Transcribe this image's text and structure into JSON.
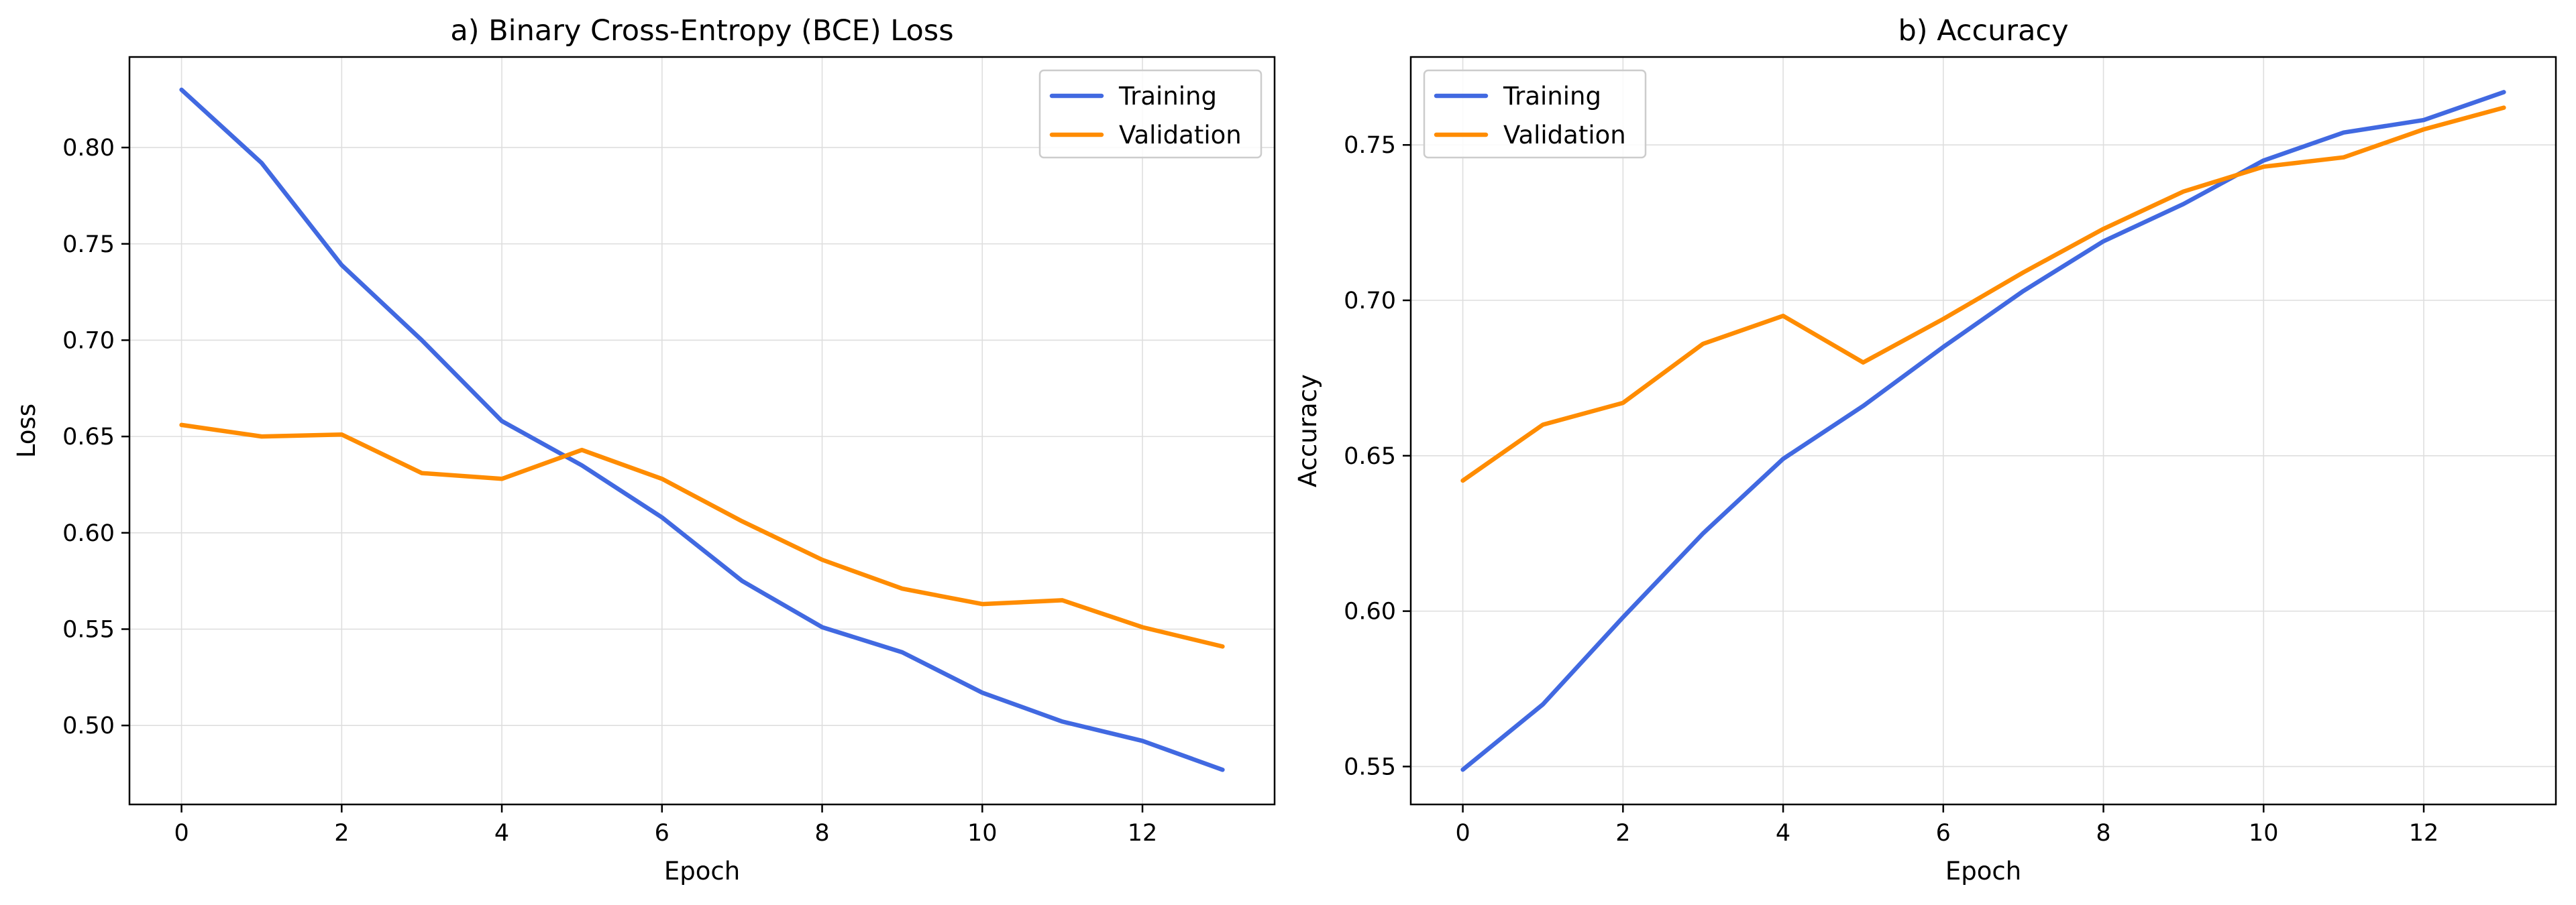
{
  "colors": {
    "training": "#4169e1",
    "validation": "#ff8c00"
  },
  "chart_data": [
    {
      "type": "line",
      "title": "a) Binary Cross-Entropy (BCE) Loss",
      "xlabel": "Epoch",
      "ylabel": "Loss",
      "xlim": [
        -0.65,
        13.65
      ],
      "ylim": [
        0.459,
        0.847
      ],
      "x_ticks": [
        0,
        2,
        4,
        6,
        8,
        10,
        12
      ],
      "x_tick_labels": [
        "0",
        "2",
        "4",
        "6",
        "8",
        "10",
        "12"
      ],
      "y_ticks": [
        0.5,
        0.55,
        0.6,
        0.65,
        0.7,
        0.75,
        0.8
      ],
      "y_tick_labels": [
        "0.50",
        "0.55",
        "0.60",
        "0.65",
        "0.70",
        "0.75",
        "0.80"
      ],
      "grid": true,
      "legend_position": "top-right",
      "x": [
        0,
        1,
        2,
        3,
        4,
        5,
        6,
        7,
        8,
        9,
        10,
        11,
        12,
        13
      ],
      "series": [
        {
          "name": "Training",
          "color": "#4169e1",
          "values": [
            0.83,
            0.792,
            0.739,
            0.7,
            0.658,
            0.635,
            0.608,
            0.575,
            0.551,
            0.538,
            0.517,
            0.502,
            0.492,
            0.477
          ]
        },
        {
          "name": "Validation",
          "color": "#ff8c00",
          "values": [
            0.656,
            0.65,
            0.651,
            0.631,
            0.628,
            0.643,
            0.628,
            0.606,
            0.586,
            0.571,
            0.563,
            0.565,
            0.551,
            0.541
          ]
        }
      ]
    },
    {
      "type": "line",
      "title": "b) Accuracy",
      "xlabel": "Epoch",
      "ylabel": "Accuracy",
      "xlim": [
        -0.65,
        13.65
      ],
      "ylim": [
        0.5378,
        0.7783
      ],
      "x_ticks": [
        0,
        2,
        4,
        6,
        8,
        10,
        12
      ],
      "x_tick_labels": [
        "0",
        "2",
        "4",
        "6",
        "8",
        "10",
        "12"
      ],
      "y_ticks": [
        0.55,
        0.6,
        0.65,
        0.7,
        0.75
      ],
      "y_tick_labels": [
        "0.55",
        "0.60",
        "0.65",
        "0.70",
        "0.75"
      ],
      "grid": true,
      "legend_position": "top-left",
      "x": [
        0,
        1,
        2,
        3,
        4,
        5,
        6,
        7,
        8,
        9,
        10,
        11,
        12,
        13
      ],
      "series": [
        {
          "name": "Training",
          "color": "#4169e1",
          "values": [
            0.549,
            0.57,
            0.598,
            0.625,
            0.649,
            0.666,
            0.685,
            0.703,
            0.719,
            0.731,
            0.745,
            0.754,
            0.758,
            0.767
          ]
        },
        {
          "name": "Validation",
          "color": "#ff8c00",
          "values": [
            0.642,
            0.66,
            0.667,
            0.686,
            0.695,
            0.68,
            0.694,
            0.709,
            0.723,
            0.735,
            0.743,
            0.746,
            0.755,
            0.762
          ]
        }
      ]
    }
  ]
}
